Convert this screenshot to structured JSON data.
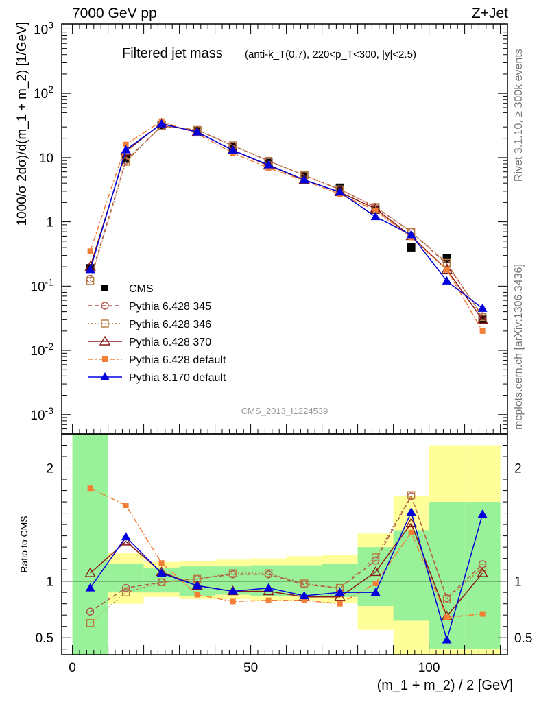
{
  "header": {
    "left": "7000 GeV pp",
    "right": "Z+Jet"
  },
  "side_labels": {
    "rivet": "Rivet 3.1.10, ≥ 300k events",
    "mcplots": "mcplots.cern.ch [arXiv:1306.3436]"
  },
  "chart_data": [
    {
      "type": "line",
      "panel": "main",
      "title": "Filtered jet mass",
      "subtitle": "(anti-k_T(0.7), 220<p_T<300, |y|<2.5)",
      "ylabel": "1000/σ 2dσ)/d(m_1 + m_2) [1/GeV]",
      "xlabel": "",
      "yscale": "log",
      "ylim": [
        0.0005,
        1200
      ],
      "xlim": [
        -3,
        122
      ],
      "y_ticks": [
        "10^-3",
        "10^-2",
        "10^-1",
        "1",
        "10",
        "10^2",
        "10^3"
      ],
      "watermark": "CMS_2013_I1224539",
      "legend_position": "bottom-left",
      "x": [
        5,
        15,
        25,
        35,
        45,
        55,
        65,
        75,
        85,
        95,
        105,
        115
      ],
      "series": [
        {
          "name": "CMS",
          "color": "#000000",
          "marker": "filled-square",
          "line": "none",
          "values": [
            0.19,
            9.6,
            31.5,
            26.5,
            14.5,
            8.3,
            5.4,
            3.4,
            1.55,
            0.4,
            0.27,
            0.03
          ]
        },
        {
          "name": "Pythia 6.428 345",
          "color": "#b0544f",
          "marker": "open-circle",
          "line": "dashed",
          "values": [
            0.13,
            9.0,
            31.0,
            27.0,
            15.3,
            8.9,
            5.3,
            3.2,
            1.7,
            0.7,
            0.22,
            0.034
          ]
        },
        {
          "name": "Pythia 6.428 346",
          "color": "#b87c3c",
          "marker": "open-square",
          "line": "dotted",
          "values": [
            0.12,
            8.6,
            31.0,
            27.0,
            15.5,
            8.9,
            5.3,
            3.2,
            1.7,
            0.7,
            0.23,
            0.033
          ]
        },
        {
          "name": "Pythia 6.428 370",
          "color": "#8b1a1a",
          "marker": "open-triangle",
          "line": "solid",
          "values": [
            0.2,
            12.5,
            34.0,
            25.0,
            13.0,
            7.5,
            4.5,
            2.9,
            1.6,
            0.6,
            0.18,
            0.03
          ]
        },
        {
          "name": "Pythia 6.428 default",
          "color": "#f37e35",
          "marker": "filled-small-square",
          "line": "dashdot",
          "values": [
            0.35,
            16.0,
            37.0,
            23.5,
            11.8,
            6.9,
            4.4,
            2.7,
            1.5,
            0.57,
            0.18,
            0.02
          ]
        },
        {
          "name": "Pythia 8.170 default",
          "color": "#0000dd",
          "marker": "filled-triangle",
          "line": "solid",
          "values": [
            0.18,
            13.2,
            33.5,
            25.0,
            13.0,
            7.7,
            4.5,
            2.9,
            1.2,
            0.63,
            0.12,
            0.045
          ]
        }
      ]
    },
    {
      "type": "line",
      "panel": "ratio",
      "ylabel": "Ratio to CMS",
      "xlabel": "(m_1 + m_2) / 2 [GeV]",
      "ylim": [
        0.35,
        2.3
      ],
      "xlim": [
        -3,
        122
      ],
      "y_ticks": [
        "0.5",
        "1",
        "2"
      ],
      "x_ticks": [
        "0",
        "50",
        "100"
      ],
      "reference_line": 1,
      "bands": {
        "bins": [
          [
            0,
            10
          ],
          [
            10,
            20
          ],
          [
            20,
            30
          ],
          [
            30,
            40
          ],
          [
            40,
            50
          ],
          [
            50,
            60
          ],
          [
            60,
            70
          ],
          [
            70,
            80
          ],
          [
            80,
            90
          ],
          [
            90,
            100
          ],
          [
            100,
            110
          ],
          [
            110,
            120
          ]
        ],
        "inner": [
          [
            0.3,
            2.3
          ],
          [
            0.9,
            1.15
          ],
          [
            0.9,
            1.12
          ],
          [
            0.87,
            1.13
          ],
          [
            0.88,
            1.13
          ],
          [
            0.87,
            1.14
          ],
          [
            0.87,
            1.14
          ],
          [
            0.86,
            1.15
          ],
          [
            0.78,
            1.3
          ],
          [
            0.65,
            1.45
          ],
          [
            0.4,
            1.7
          ],
          [
            0.4,
            1.7
          ]
        ],
        "outer": [
          [
            0.3,
            2.3
          ],
          [
            0.8,
            1.25
          ],
          [
            0.86,
            1.17
          ],
          [
            0.84,
            1.18
          ],
          [
            0.84,
            1.19
          ],
          [
            0.83,
            1.2
          ],
          [
            0.83,
            1.22
          ],
          [
            0.81,
            1.23
          ],
          [
            0.57,
            1.42
          ],
          [
            0.3,
            1.75
          ],
          [
            0.3,
            2.2
          ],
          [
            0.3,
            2.2
          ]
        ],
        "inner_color": "#99f299",
        "outer_color": "#ffff99"
      },
      "x": [
        5,
        15,
        25,
        35,
        45,
        55,
        65,
        75,
        85,
        95,
        105,
        115
      ],
      "series": [
        {
          "name": "Pythia 6.428 345",
          "color": "#b0544f",
          "marker": "open-circle",
          "line": "dashed",
          "values": [
            0.73,
            0.94,
            0.99,
            1.02,
            1.06,
            1.06,
            0.97,
            0.94,
            1.18,
            1.75,
            0.85,
            1.15
          ]
        },
        {
          "name": "Pythia 6.428 346",
          "color": "#b87c3c",
          "marker": "open-square",
          "line": "dotted",
          "values": [
            0.63,
            0.9,
            0.99,
            1.02,
            1.07,
            1.07,
            0.98,
            0.94,
            1.21,
            1.76,
            0.84,
            1.12
          ]
        },
        {
          "name": "Pythia 6.428 370",
          "color": "#8b1a1a",
          "marker": "open-triangle",
          "line": "solid",
          "values": [
            1.07,
            1.35,
            1.08,
            0.96,
            0.91,
            0.91,
            0.86,
            0.86,
            1.08,
            1.51,
            0.69,
            1.07
          ]
        },
        {
          "name": "Pythia 6.428 default",
          "color": "#f37e35",
          "marker": "filled-small-square",
          "line": "dashdot",
          "values": [
            1.82,
            1.67,
            1.16,
            0.88,
            0.82,
            0.83,
            0.83,
            0.8,
            0.98,
            1.43,
            0.68,
            0.71
          ]
        },
        {
          "name": "Pythia 8.170 default",
          "color": "#0000dd",
          "marker": "filled-triangle",
          "line": "solid",
          "values": [
            0.94,
            1.39,
            1.07,
            0.96,
            0.91,
            0.94,
            0.87,
            0.9,
            0.9,
            1.61,
            0.48,
            1.59
          ]
        }
      ]
    }
  ]
}
